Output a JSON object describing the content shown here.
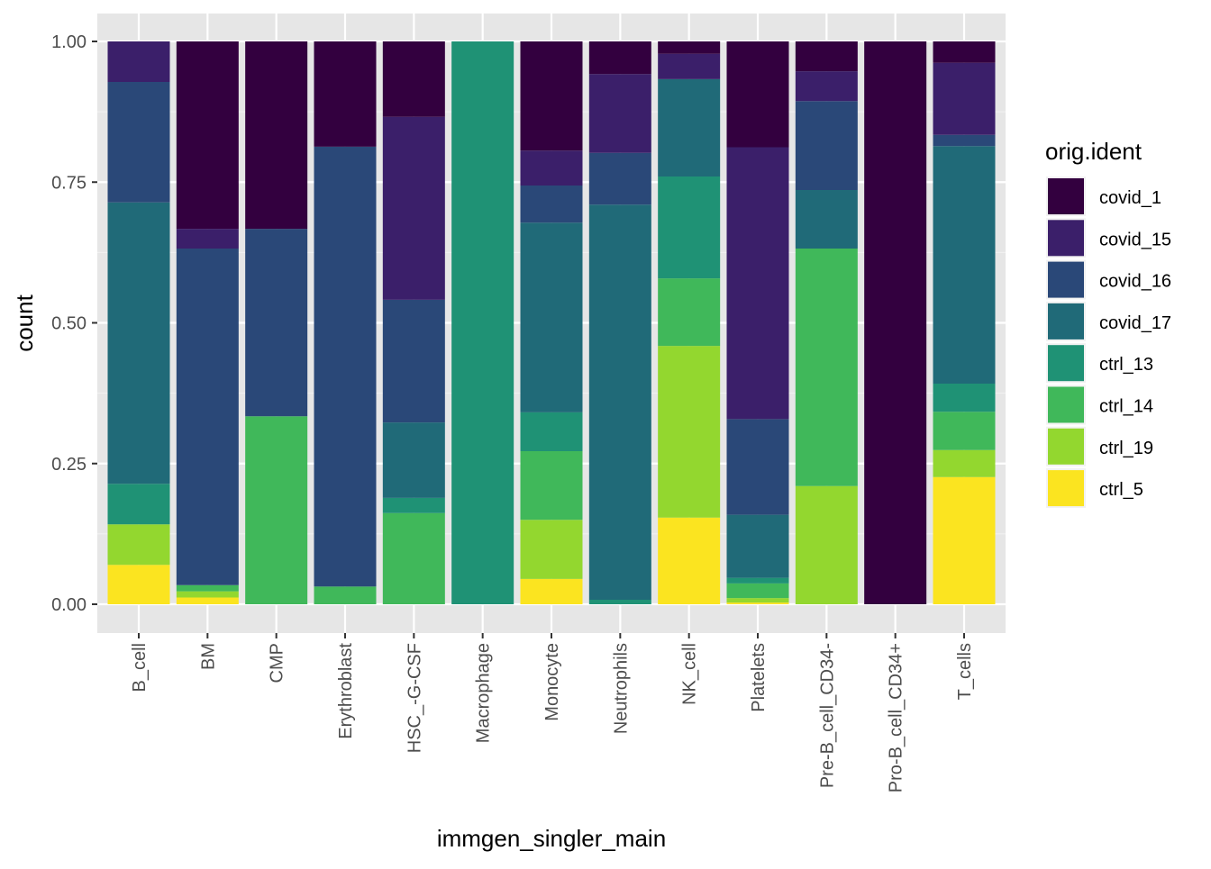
{
  "chart_data": {
    "type": "bar",
    "stacked": true,
    "position": "fill",
    "title": "",
    "xlabel": "immgen_singler_main",
    "ylabel": "count",
    "ylim": [
      0,
      1
    ],
    "yticks": [
      "0.00",
      "0.25",
      "0.50",
      "0.75",
      "1.00"
    ],
    "ytick_values": [
      0,
      0.25,
      0.5,
      0.75,
      1
    ],
    "grid": true,
    "legend": {
      "title": "orig.ident",
      "placement": "right"
    },
    "categories": [
      "B_cell",
      "BM",
      "CMP",
      "Erythroblast",
      "HSC_-G-CSF",
      "Macrophage",
      "Monocyte",
      "Neutrophils",
      "NK_cell",
      "Platelets",
      "Pre-B_cell_CD34-",
      "Pro-B_cell_CD34+",
      "T_cells"
    ],
    "series": [
      {
        "name": "covid_1",
        "color": "#33003f",
        "values": [
          0,
          0.333,
          0.333,
          0.1875,
          0.134,
          0,
          0.194,
          0.058,
          0.022,
          0.189,
          0.053,
          1,
          0.038
        ]
      },
      {
        "name": "covid_15",
        "color": "#3b1f6a",
        "values": [
          0.072,
          0.035,
          0,
          0,
          0.325,
          0,
          0.062,
          0.14,
          0.045,
          0.483,
          0.053,
          0,
          0.128
        ]
      },
      {
        "name": "covid_16",
        "color": "#2a4878",
        "values": [
          0.214,
          0.598,
          0.333,
          0.7815,
          0.218,
          0,
          0.066,
          0.092,
          0,
          0.17,
          0.158,
          0,
          0.02
        ]
      },
      {
        "name": "covid_17",
        "color": "#206a78",
        "values": [
          0.5,
          0,
          0,
          0,
          0.134,
          0,
          0.337,
          0.702,
          0.173,
          0.112,
          0.104,
          0,
          0.422
        ]
      },
      {
        "name": "ctrl_13",
        "color": "#1f9275",
        "values": [
          0.072,
          0,
          0,
          0,
          0.027,
          1,
          0.069,
          0.008,
          0.181,
          0.01,
          0,
          0,
          0.05
        ]
      },
      {
        "name": "ctrl_14",
        "color": "#40b85a",
        "values": [
          0,
          0.011,
          0.334,
          0.0315,
          0.162,
          0,
          0.122,
          0,
          0.12,
          0.026,
          0.422,
          0,
          0.068
        ]
      },
      {
        "name": "ctrl_19",
        "color": "#93d72f",
        "values": [
          0.072,
          0.011,
          0,
          0,
          0,
          0,
          0.105,
          0,
          0.305,
          0.008,
          0.21,
          0,
          0.048
        ]
      },
      {
        "name": "ctrl_5",
        "color": "#fbe420",
        "values": [
          0.07,
          0.012,
          0,
          0,
          0,
          0,
          0.045,
          0,
          0.154,
          0.003,
          0,
          0,
          0.226
        ]
      }
    ]
  }
}
